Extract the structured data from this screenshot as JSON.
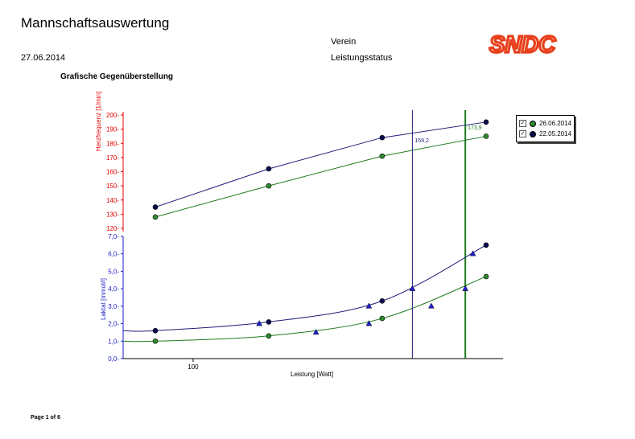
{
  "header": {
    "title": "Mannschaftsauswertung",
    "date": "27.06.2014",
    "verein": "Verein",
    "leistungsstatus": "Leistungsstatus",
    "subtitle": "Grafische Gegenüberstellung",
    "logo_text": "SNDC"
  },
  "footer": {
    "page": "Page 1 of 6"
  },
  "colors": {
    "series1": "#1f7a1f",
    "series1_fill": "#2e8b2e",
    "series2": "#1e1e78",
    "series2_fill": "#0a0a50",
    "hr_axis": "#e60000",
    "lac_axis": "#1e1ec8",
    "logo": "#e8401c"
  },
  "legend": {
    "items": [
      {
        "label": "26.06.2014",
        "checkbox": "✓"
      },
      {
        "label": "22.05.2014",
        "checkbox": "✓"
      }
    ]
  },
  "chart_data": {
    "type": "line",
    "xlabel": "Leistung [Watt]",
    "x_ticks": [
      {
        "value": 100,
        "label": "100"
      }
    ],
    "hr_axis": {
      "label": "Herzfrequenz [1/min]",
      "range": [
        120,
        200
      ],
      "ticks": [
        "120",
        "130",
        "140",
        "150",
        "160",
        "170",
        "180",
        "190",
        "200"
      ]
    },
    "lactate_axis": {
      "label": "Laktat [mmol/l]",
      "range": [
        0,
        7
      ],
      "ticks": [
        "0,0",
        "1,0",
        "2,0",
        "3,0",
        "4,0",
        "5,0",
        "6,0",
        "7,0"
      ]
    },
    "series": [
      {
        "name": "26.06.2014",
        "hr_points": [
          [
            80,
            128
          ],
          [
            140,
            150
          ],
          [
            200,
            171
          ],
          [
            255,
            185
          ]
        ],
        "lactate_points": [
          [
            80,
            1.0
          ],
          [
            140,
            1.3
          ],
          [
            200,
            2.3
          ],
          [
            255,
            4.7
          ]
        ],
        "lactate_markers": [
          [
            165,
            1.5
          ],
          [
            193,
            2.0
          ],
          [
            226,
            3.0
          ],
          [
            244,
            4.0
          ]
        ],
        "threshold_x": 244,
        "threshold_label": "173,9"
      },
      {
        "name": "22.05.2014",
        "hr_points": [
          [
            80,
            135
          ],
          [
            140,
            162
          ],
          [
            200,
            184
          ],
          [
            255,
            195
          ]
        ],
        "lactate_points": [
          [
            80,
            1.6
          ],
          [
            140,
            2.1
          ],
          [
            200,
            3.3
          ],
          [
            255,
            6.5
          ]
        ],
        "lactate_markers": [
          [
            135,
            2.0
          ],
          [
            193,
            3.0
          ],
          [
            216,
            4.0
          ],
          [
            248,
            6.0
          ]
        ],
        "threshold_x": 216,
        "threshold_label": "159,2"
      }
    ]
  }
}
